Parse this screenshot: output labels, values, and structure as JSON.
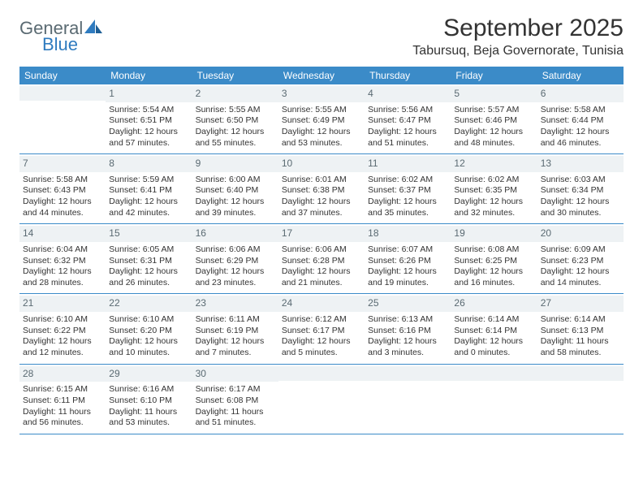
{
  "logo": {
    "general": "General",
    "blue": "Blue"
  },
  "header": {
    "month_title": "September 2025",
    "location": "Tabursuq, Beja Governorate, Tunisia"
  },
  "day_names": [
    "Sunday",
    "Monday",
    "Tuesday",
    "Wednesday",
    "Thursday",
    "Friday",
    "Saturday"
  ],
  "colors": {
    "header_bg": "#3b8bc8",
    "header_text": "#ffffff",
    "daynum_bg": "#eef2f4",
    "daynum_text": "#5a6a72",
    "border": "#3b8bc8",
    "body_text": "#333333",
    "logo_gray": "#5a6a72",
    "logo_blue": "#2f7bbf"
  },
  "weeks": [
    [
      {
        "day": "",
        "sunrise": "",
        "sunset": "",
        "daylight": ""
      },
      {
        "day": "1",
        "sunrise": "Sunrise: 5:54 AM",
        "sunset": "Sunset: 6:51 PM",
        "daylight": "Daylight: 12 hours and 57 minutes."
      },
      {
        "day": "2",
        "sunrise": "Sunrise: 5:55 AM",
        "sunset": "Sunset: 6:50 PM",
        "daylight": "Daylight: 12 hours and 55 minutes."
      },
      {
        "day": "3",
        "sunrise": "Sunrise: 5:55 AM",
        "sunset": "Sunset: 6:49 PM",
        "daylight": "Daylight: 12 hours and 53 minutes."
      },
      {
        "day": "4",
        "sunrise": "Sunrise: 5:56 AM",
        "sunset": "Sunset: 6:47 PM",
        "daylight": "Daylight: 12 hours and 51 minutes."
      },
      {
        "day": "5",
        "sunrise": "Sunrise: 5:57 AM",
        "sunset": "Sunset: 6:46 PM",
        "daylight": "Daylight: 12 hours and 48 minutes."
      },
      {
        "day": "6",
        "sunrise": "Sunrise: 5:58 AM",
        "sunset": "Sunset: 6:44 PM",
        "daylight": "Daylight: 12 hours and 46 minutes."
      }
    ],
    [
      {
        "day": "7",
        "sunrise": "Sunrise: 5:58 AM",
        "sunset": "Sunset: 6:43 PM",
        "daylight": "Daylight: 12 hours and 44 minutes."
      },
      {
        "day": "8",
        "sunrise": "Sunrise: 5:59 AM",
        "sunset": "Sunset: 6:41 PM",
        "daylight": "Daylight: 12 hours and 42 minutes."
      },
      {
        "day": "9",
        "sunrise": "Sunrise: 6:00 AM",
        "sunset": "Sunset: 6:40 PM",
        "daylight": "Daylight: 12 hours and 39 minutes."
      },
      {
        "day": "10",
        "sunrise": "Sunrise: 6:01 AM",
        "sunset": "Sunset: 6:38 PM",
        "daylight": "Daylight: 12 hours and 37 minutes."
      },
      {
        "day": "11",
        "sunrise": "Sunrise: 6:02 AM",
        "sunset": "Sunset: 6:37 PM",
        "daylight": "Daylight: 12 hours and 35 minutes."
      },
      {
        "day": "12",
        "sunrise": "Sunrise: 6:02 AM",
        "sunset": "Sunset: 6:35 PM",
        "daylight": "Daylight: 12 hours and 32 minutes."
      },
      {
        "day": "13",
        "sunrise": "Sunrise: 6:03 AM",
        "sunset": "Sunset: 6:34 PM",
        "daylight": "Daylight: 12 hours and 30 minutes."
      }
    ],
    [
      {
        "day": "14",
        "sunrise": "Sunrise: 6:04 AM",
        "sunset": "Sunset: 6:32 PM",
        "daylight": "Daylight: 12 hours and 28 minutes."
      },
      {
        "day": "15",
        "sunrise": "Sunrise: 6:05 AM",
        "sunset": "Sunset: 6:31 PM",
        "daylight": "Daylight: 12 hours and 26 minutes."
      },
      {
        "day": "16",
        "sunrise": "Sunrise: 6:06 AM",
        "sunset": "Sunset: 6:29 PM",
        "daylight": "Daylight: 12 hours and 23 minutes."
      },
      {
        "day": "17",
        "sunrise": "Sunrise: 6:06 AM",
        "sunset": "Sunset: 6:28 PM",
        "daylight": "Daylight: 12 hours and 21 minutes."
      },
      {
        "day": "18",
        "sunrise": "Sunrise: 6:07 AM",
        "sunset": "Sunset: 6:26 PM",
        "daylight": "Daylight: 12 hours and 19 minutes."
      },
      {
        "day": "19",
        "sunrise": "Sunrise: 6:08 AM",
        "sunset": "Sunset: 6:25 PM",
        "daylight": "Daylight: 12 hours and 16 minutes."
      },
      {
        "day": "20",
        "sunrise": "Sunrise: 6:09 AM",
        "sunset": "Sunset: 6:23 PM",
        "daylight": "Daylight: 12 hours and 14 minutes."
      }
    ],
    [
      {
        "day": "21",
        "sunrise": "Sunrise: 6:10 AM",
        "sunset": "Sunset: 6:22 PM",
        "daylight": "Daylight: 12 hours and 12 minutes."
      },
      {
        "day": "22",
        "sunrise": "Sunrise: 6:10 AM",
        "sunset": "Sunset: 6:20 PM",
        "daylight": "Daylight: 12 hours and 10 minutes."
      },
      {
        "day": "23",
        "sunrise": "Sunrise: 6:11 AM",
        "sunset": "Sunset: 6:19 PM",
        "daylight": "Daylight: 12 hours and 7 minutes."
      },
      {
        "day": "24",
        "sunrise": "Sunrise: 6:12 AM",
        "sunset": "Sunset: 6:17 PM",
        "daylight": "Daylight: 12 hours and 5 minutes."
      },
      {
        "day": "25",
        "sunrise": "Sunrise: 6:13 AM",
        "sunset": "Sunset: 6:16 PM",
        "daylight": "Daylight: 12 hours and 3 minutes."
      },
      {
        "day": "26",
        "sunrise": "Sunrise: 6:14 AM",
        "sunset": "Sunset: 6:14 PM",
        "daylight": "Daylight: 12 hours and 0 minutes."
      },
      {
        "day": "27",
        "sunrise": "Sunrise: 6:14 AM",
        "sunset": "Sunset: 6:13 PM",
        "daylight": "Daylight: 11 hours and 58 minutes."
      }
    ],
    [
      {
        "day": "28",
        "sunrise": "Sunrise: 6:15 AM",
        "sunset": "Sunset: 6:11 PM",
        "daylight": "Daylight: 11 hours and 56 minutes."
      },
      {
        "day": "29",
        "sunrise": "Sunrise: 6:16 AM",
        "sunset": "Sunset: 6:10 PM",
        "daylight": "Daylight: 11 hours and 53 minutes."
      },
      {
        "day": "30",
        "sunrise": "Sunrise: 6:17 AM",
        "sunset": "Sunset: 6:08 PM",
        "daylight": "Daylight: 11 hours and 51 minutes."
      },
      {
        "day": "",
        "sunrise": "",
        "sunset": "",
        "daylight": ""
      },
      {
        "day": "",
        "sunrise": "",
        "sunset": "",
        "daylight": ""
      },
      {
        "day": "",
        "sunrise": "",
        "sunset": "",
        "daylight": ""
      },
      {
        "day": "",
        "sunrise": "",
        "sunset": "",
        "daylight": ""
      }
    ]
  ]
}
